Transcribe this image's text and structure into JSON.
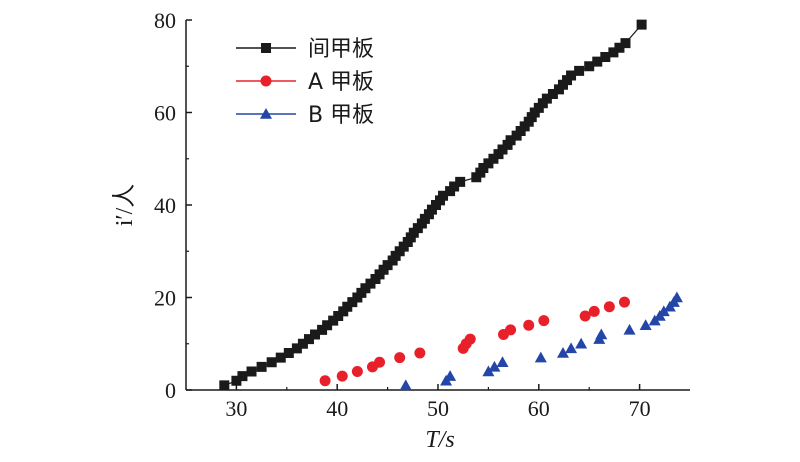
{
  "chart_data": {
    "type": "scatter",
    "xlabel": "T/s",
    "ylabel": "i′/人",
    "xlim": [
      25,
      75
    ],
    "ylim": [
      0,
      80
    ],
    "xticks": [
      "30",
      "40",
      "50",
      "60",
      "70"
    ],
    "yticks": [
      "0",
      "20",
      "40",
      "60",
      "80"
    ],
    "grid": false,
    "legend_position": "top-left",
    "series": [
      {
        "name": "间甲板",
        "color": "#1a1a1a",
        "marker": "square",
        "line": true,
        "x": [
          28.8,
          30.0,
          30.6,
          31.5,
          32.5,
          33.5,
          34.4,
          35.2,
          36.0,
          36.6,
          37.2,
          37.8,
          38.5,
          39.0,
          39.6,
          40.1,
          40.6,
          41.0,
          41.5,
          42.0,
          42.4,
          42.8,
          43.3,
          43.8,
          44.2,
          44.6,
          45.0,
          45.5,
          45.8,
          46.2,
          46.6,
          47.0,
          47.3,
          47.6,
          48.0,
          48.4,
          48.7,
          49.1,
          49.4,
          49.8,
          50.2,
          50.5,
          51.2,
          51.6,
          52.2,
          53.8,
          54.2,
          54.5,
          55.0,
          55.5,
          56.0,
          56.4,
          56.9,
          57.2,
          57.8,
          58.2,
          58.6,
          59.0,
          59.3,
          59.6,
          60.0,
          60.4,
          60.8,
          61.4,
          62.0,
          62.4,
          62.8,
          63.2,
          64.0,
          65.0,
          65.8,
          66.6,
          67.4,
          68.0,
          68.6,
          70.2
        ],
        "y": [
          1,
          2,
          3,
          4,
          5,
          6,
          7,
          8,
          9,
          10,
          11,
          12,
          13,
          14,
          15,
          16,
          17,
          18,
          19,
          20,
          21,
          22,
          23,
          24,
          25,
          26,
          27,
          28,
          29,
          30,
          31,
          32,
          33,
          34,
          35,
          36,
          37,
          38,
          39,
          40,
          41,
          42,
          43,
          44,
          45,
          46,
          47,
          48,
          49,
          50,
          51,
          52,
          53,
          54,
          55,
          56,
          57,
          58,
          59,
          60,
          61,
          62,
          63,
          64,
          65,
          66,
          67,
          68,
          69,
          70,
          71,
          72,
          73,
          74,
          75,
          79
        ]
      },
      {
        "name": "A 甲板",
        "color": "#e8202a",
        "marker": "circle",
        "line": false,
        "x": [
          38.8,
          40.5,
          42.0,
          43.5,
          44.2,
          46.2,
          48.2,
          52.5,
          52.8,
          53.2,
          56.5,
          57.2,
          59.0,
          60.5,
          64.6,
          65.5,
          67.0,
          68.5
        ],
        "y": [
          2,
          3,
          4,
          5,
          6,
          7,
          8,
          9,
          10,
          11,
          12,
          13,
          14,
          15,
          16,
          17,
          18,
          19
        ]
      },
      {
        "name": "B 甲板",
        "color": "#2346a8",
        "marker": "triangle",
        "line": false,
        "x": [
          46.8,
          50.8,
          51.2,
          55.0,
          55.6,
          56.4,
          60.2,
          62.4,
          63.2,
          64.2,
          66.0,
          66.2,
          69.0,
          70.6,
          71.5,
          72.0,
          72.4,
          73.0,
          73.4,
          73.7
        ],
        "y": [
          1,
          2,
          3,
          4,
          5,
          6,
          7,
          8,
          9,
          10,
          11,
          12,
          13,
          14,
          15,
          16,
          17,
          18,
          19,
          20
        ]
      }
    ]
  }
}
